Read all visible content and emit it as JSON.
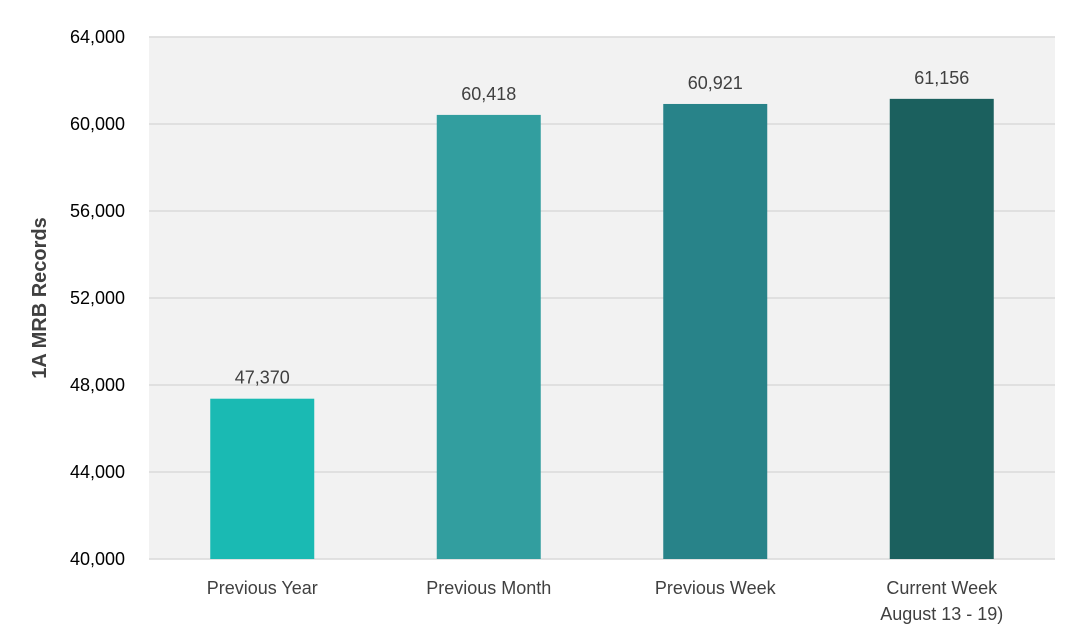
{
  "chart_data": {
    "type": "bar",
    "categories": [
      [
        "Previous Year"
      ],
      [
        "Previous Month"
      ],
      [
        "Previous Week"
      ],
      [
        "Current Week",
        "August 13 - 19)"
      ]
    ],
    "values": [
      47370,
      60418,
      60921,
      61156
    ],
    "data_labels": [
      "47,370",
      "60,418",
      "60,921",
      "61,156"
    ],
    "ylabel": "1A MRB Records",
    "ylim": [
      40000,
      64000
    ],
    "yticks": [
      40000,
      44000,
      48000,
      52000,
      56000,
      60000,
      64000
    ],
    "ytick_labels": [
      "40,000",
      "44,000",
      "48,000",
      "52,000",
      "56,000",
      "60,000",
      "64,000"
    ],
    "grid": true,
    "legend": "none",
    "colors": [
      "#1abab3",
      "#329e9f",
      "#288389",
      "#1b605e"
    ],
    "plot_background": "#f2f2f2",
    "gridline_color": "#d9d9d9"
  }
}
